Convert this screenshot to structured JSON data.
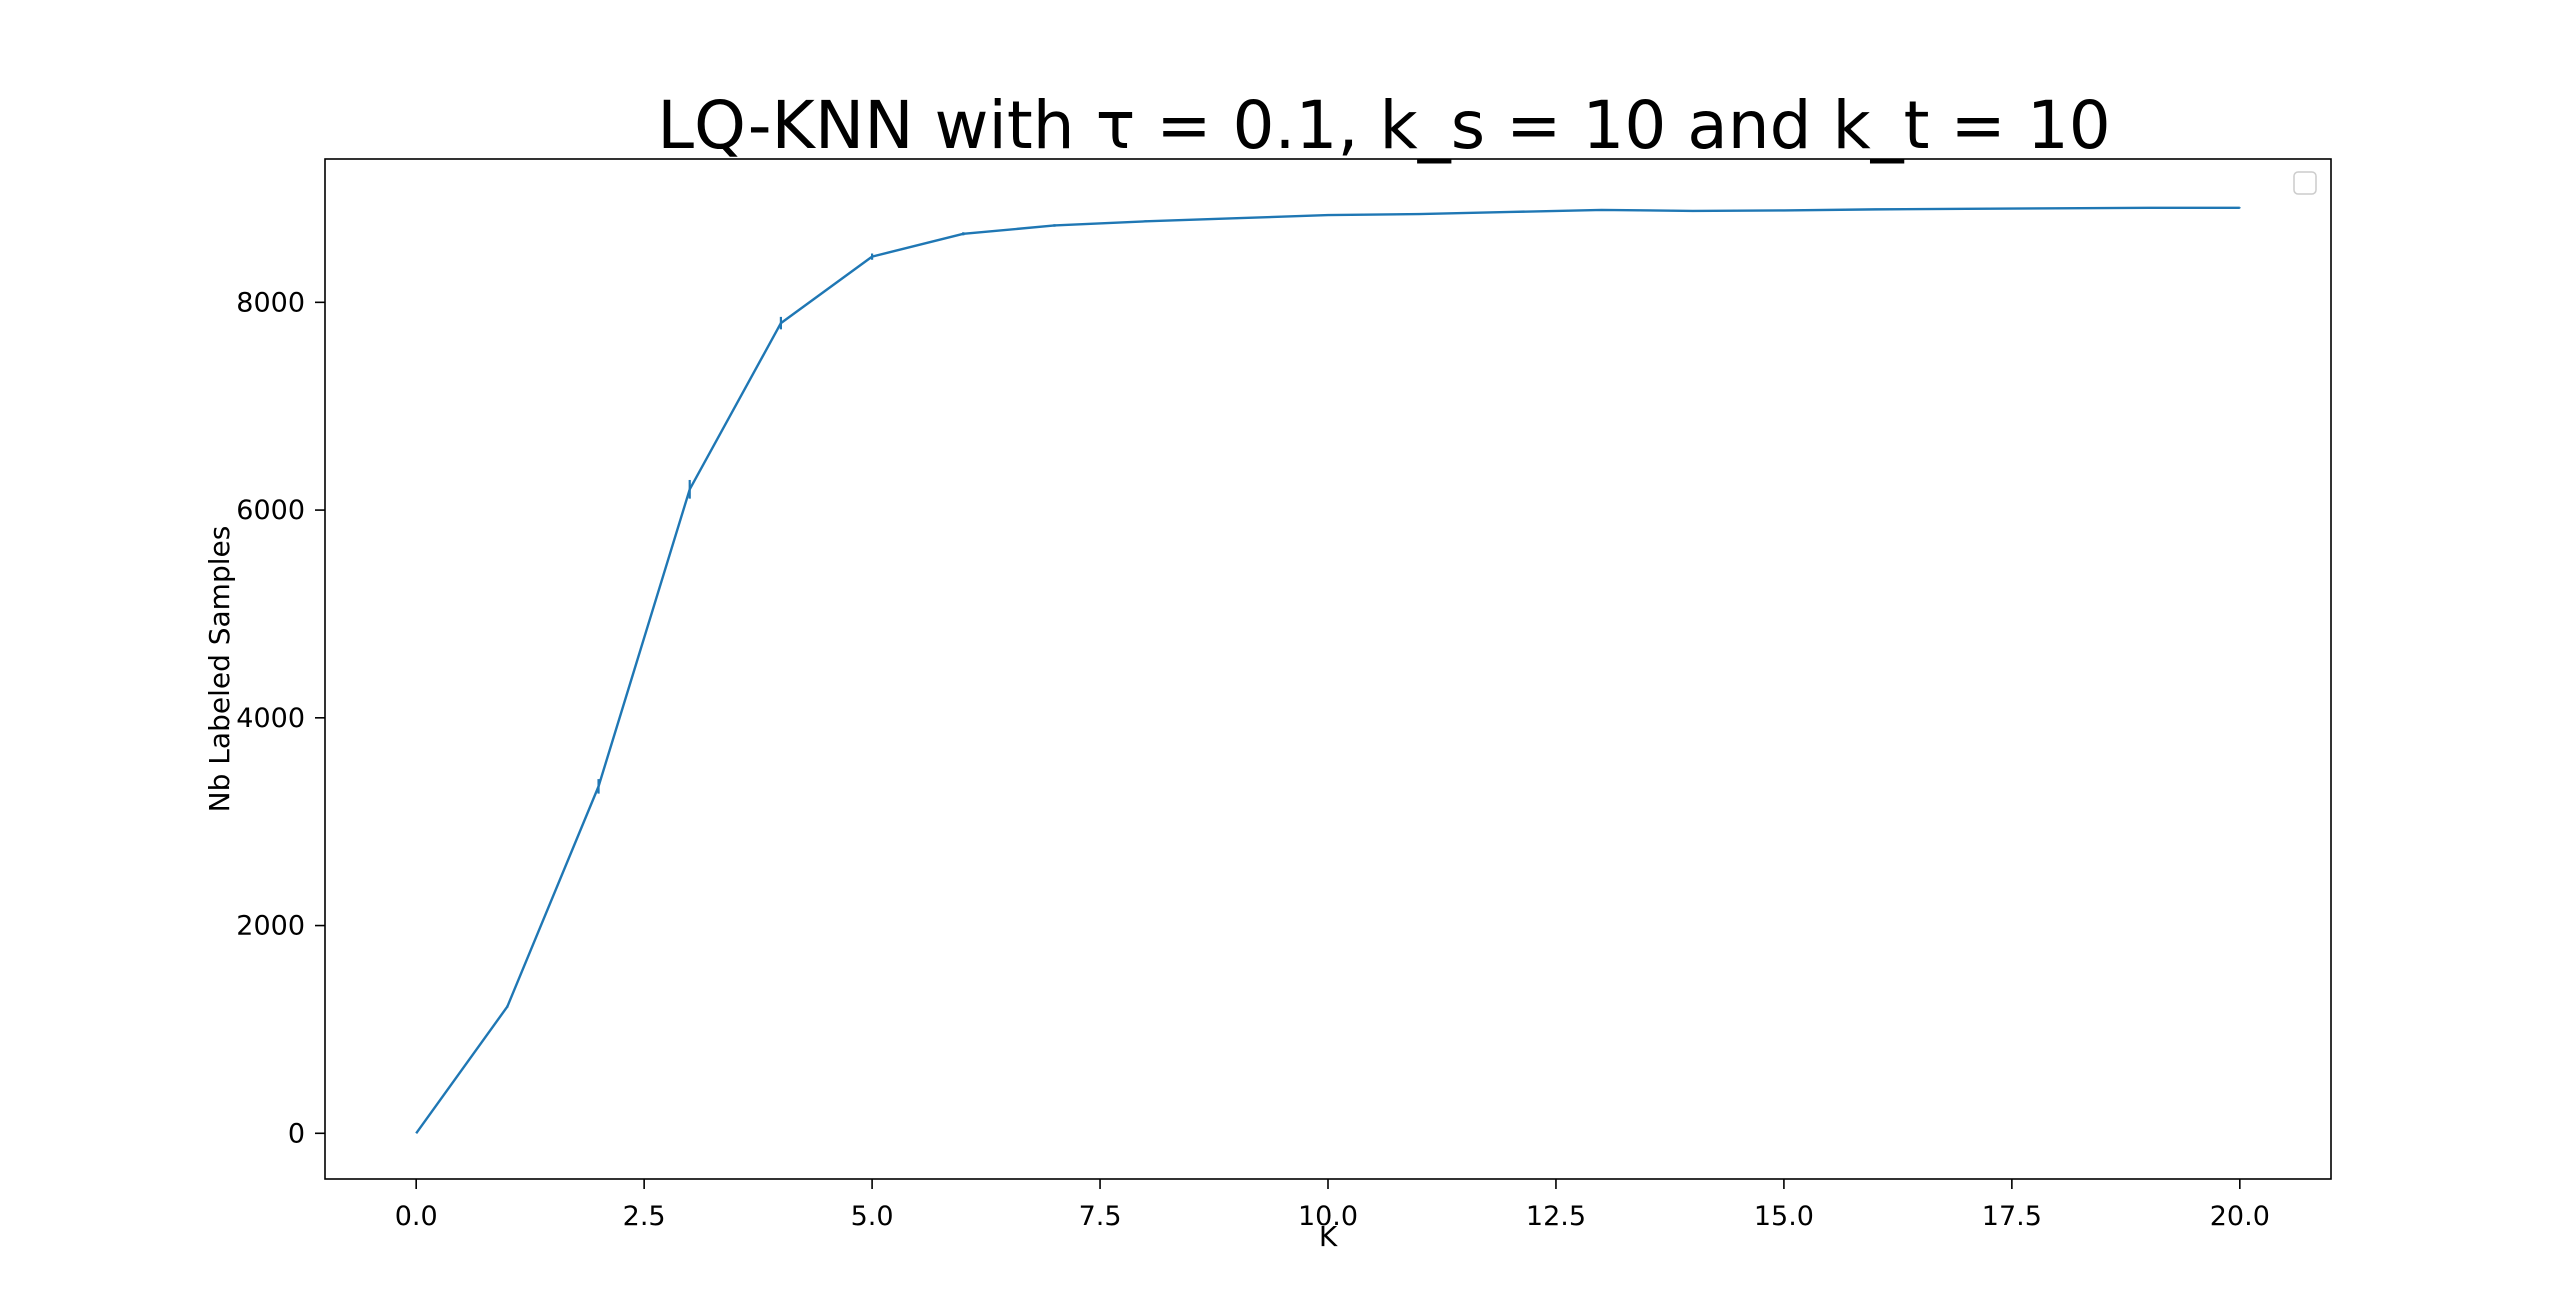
{
  "chart_data": {
    "type": "line",
    "title": "LQ-KNN with τ = 0.1, k_s = 10 and k_t = 10",
    "xlabel": "K",
    "ylabel": "Nb Labeled Samples",
    "xlim": [
      -1.0,
      21.0
    ],
    "ylim": [
      -440,
      9380
    ],
    "x_ticks": [
      0.0,
      2.5,
      5.0,
      7.5,
      10.0,
      12.5,
      15.0,
      17.5,
      20.0
    ],
    "x_tick_labels": [
      "0.0",
      "2.5",
      "5.0",
      "7.5",
      "10.0",
      "12.5",
      "15.0",
      "17.5",
      "20.0"
    ],
    "y_ticks": [
      0,
      2000,
      4000,
      6000,
      8000
    ],
    "y_tick_labels": [
      "0",
      "2000",
      "4000",
      "6000",
      "8000"
    ],
    "grid": false,
    "legend": {
      "placement": "upper right",
      "entries": []
    },
    "series": [
      {
        "color": "#1f77b4",
        "x": [
          0,
          1,
          2,
          3,
          4,
          5,
          6,
          7,
          8,
          9,
          10,
          11,
          12,
          13,
          14,
          15,
          16,
          17,
          18,
          19,
          20
        ],
        "y": [
          0,
          1220,
          3340,
          6200,
          7800,
          8440,
          8660,
          8740,
          8780,
          8810,
          8840,
          8850,
          8870,
          8890,
          8880,
          8885,
          8895,
          8900,
          8905,
          8910,
          8910
        ],
        "yerr": [
          0,
          10,
          70,
          90,
          60,
          30,
          15,
          12,
          10,
          8,
          8,
          6,
          5,
          5,
          5,
          4,
          4,
          4,
          4,
          4,
          4
        ]
      }
    ]
  }
}
